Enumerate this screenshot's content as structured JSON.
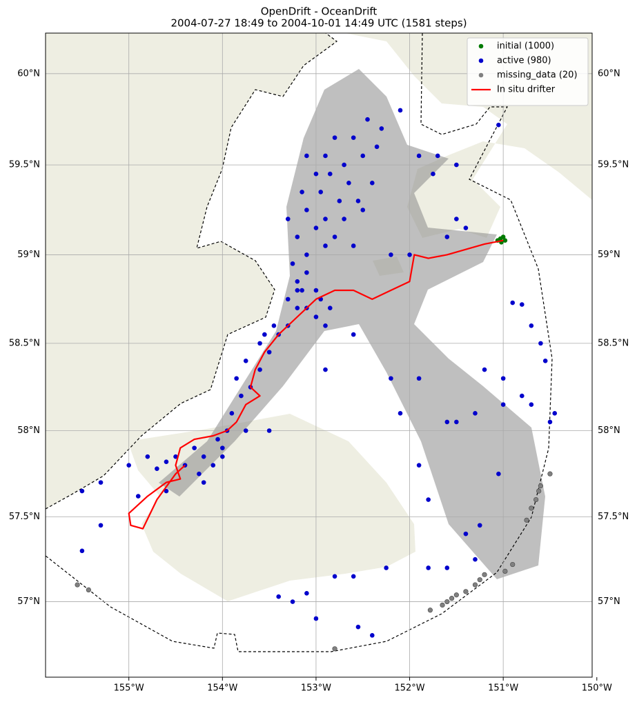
{
  "chart_data": {
    "type": "scatter",
    "title": "OpenDrift - OceanDrift",
    "subtitle": "2004-07-27 18:49 to 2004-10-01 14:49 UTC (1581 steps)",
    "projection": "mercator",
    "grid": true,
    "legend": "upper right",
    "xlim": [
      -155.89,
      -150.05
    ],
    "ylim": [
      56.55,
      60.22
    ],
    "xticks": [
      {
        "value": -155,
        "label": "155°W"
      },
      {
        "value": -154,
        "label": "154°W"
      },
      {
        "value": -153,
        "label": "153°W"
      },
      {
        "value": -152,
        "label": "152°W"
      },
      {
        "value": -151,
        "label": "151°W"
      },
      {
        "value": -150,
        "label": "150°W"
      }
    ],
    "yticks": [
      {
        "value": 57,
        "label": "57°N"
      },
      {
        "value": 57.5,
        "label": "57.5°N"
      },
      {
        "value": 58,
        "label": "58°N"
      },
      {
        "value": 58.5,
        "label": "58.5°N"
      },
      {
        "value": 59,
        "label": "59°N"
      },
      {
        "value": 59.5,
        "label": "59.5°N"
      },
      {
        "value": 60,
        "label": "60°N"
      }
    ],
    "series": [
      {
        "name": "initial (1000)",
        "color": "#007a00",
        "kind": "points",
        "x": [
          -151.03,
          -151.0,
          -151.06,
          -150.98,
          -151.02
        ],
        "y": [
          59.09,
          59.1,
          59.08,
          59.08,
          59.07
        ]
      },
      {
        "name": "active (980)",
        "color": "#0000cc",
        "kind": "points",
        "x": [
          -154.4,
          -154.5,
          -154.3,
          -154.2,
          -154.0,
          -154.1,
          -154.6,
          -154.7,
          -154.25,
          -154.05,
          -153.95,
          -154.0,
          -154.8,
          -153.9,
          -153.8,
          -153.7,
          -153.85,
          -153.6,
          -153.75,
          -153.5,
          -153.6,
          -153.4,
          -153.55,
          -153.3,
          -153.45,
          -153.2,
          -153.3,
          -153.1,
          -153.0,
          -152.9,
          -153.15,
          -153.2,
          -153.1,
          -153.0,
          -152.95,
          -152.85,
          -153.25,
          -153.1,
          -152.9,
          -153.2,
          -153.0,
          -152.8,
          -152.6,
          -153.3,
          -153.1,
          -152.9,
          -152.7,
          -152.5,
          -153.15,
          -152.95,
          -152.75,
          -152.55,
          -153.0,
          -152.85,
          -152.65,
          -152.4,
          -153.1,
          -152.9,
          -152.7,
          -152.5,
          -152.8,
          -152.6,
          -152.35,
          -152.3,
          -152.1,
          -152.45,
          -151.9,
          -151.7,
          -151.5,
          -151.75,
          -151.6,
          -151.4,
          -151.5,
          -152.2,
          -152.0,
          -155.0,
          -155.3,
          -155.5,
          -155.5,
          -155.3,
          -154.6,
          -154.9,
          -151.05,
          -150.9,
          -150.8,
          -150.7,
          -150.6,
          -150.55,
          -150.45,
          -150.7,
          -150.5,
          -150.8,
          -151.2,
          -151.0,
          -151.0,
          -151.3,
          -151.5,
          -151.6,
          -151.9,
          -151.8,
          -151.9,
          -152.2,
          -152.1,
          -152.6,
          -152.9,
          -153.2,
          -151.4,
          -151.25,
          -151.3,
          -151.05,
          -152.25,
          -151.8,
          -151.6,
          -152.6,
          -152.8,
          -153.1,
          -152.4,
          -152.55,
          -153.0,
          -153.25,
          -153.4,
          -154.2,
          -153.5,
          -153.75
        ],
        "y": [
          57.8,
          57.85,
          57.9,
          57.85,
          57.9,
          57.8,
          57.82,
          57.78,
          57.75,
          57.95,
          58.0,
          57.85,
          57.85,
          58.1,
          58.2,
          58.25,
          58.3,
          58.35,
          58.4,
          58.45,
          58.5,
          58.55,
          58.55,
          58.6,
          58.6,
          58.7,
          58.75,
          58.7,
          58.65,
          58.6,
          58.8,
          58.85,
          58.9,
          58.8,
          58.75,
          58.7,
          58.95,
          59.0,
          59.05,
          59.1,
          59.15,
          59.1,
          59.05,
          59.2,
          59.25,
          59.2,
          59.2,
          59.25,
          59.35,
          59.35,
          59.3,
          59.3,
          59.45,
          59.45,
          59.4,
          59.4,
          59.55,
          59.55,
          59.5,
          59.55,
          59.65,
          59.65,
          59.6,
          59.7,
          59.8,
          59.75,
          59.55,
          59.55,
          59.5,
          59.45,
          59.1,
          59.15,
          59.2,
          59.0,
          59.0,
          57.8,
          57.7,
          57.65,
          57.3,
          57.45,
          57.65,
          57.62,
          59.72,
          58.73,
          58.72,
          58.6,
          58.5,
          58.4,
          58.1,
          58.15,
          58.05,
          58.2,
          58.35,
          58.3,
          58.15,
          58.1,
          58.05,
          58.05,
          58.3,
          57.6,
          57.8,
          58.3,
          58.1,
          58.55,
          58.35,
          58.8,
          57.4,
          57.45,
          57.25,
          57.75,
          57.2,
          57.2,
          57.2,
          57.15,
          57.15,
          57.05,
          56.8,
          56.85,
          56.9,
          57.0,
          57.03,
          57.7,
          58.0,
          58.0
        ]
      },
      {
        "name": "missing_data (20)",
        "color": "#808080",
        "kind": "points",
        "x": [
          -155.55,
          -155.43,
          -152.8,
          -151.78,
          -151.65,
          -151.6,
          -151.55,
          -151.5,
          -151.4,
          -151.3,
          -151.25,
          -151.2,
          -150.98,
          -150.9,
          -150.75,
          -150.7,
          -150.65,
          -150.62,
          -150.6,
          -150.5
        ],
        "y": [
          57.1,
          57.07,
          56.72,
          56.95,
          56.98,
          57.0,
          57.02,
          57.04,
          57.06,
          57.1,
          57.13,
          57.16,
          57.18,
          57.22,
          57.48,
          57.55,
          57.6,
          57.65,
          57.68,
          57.75
        ]
      },
      {
        "name": "In situ drifter",
        "color": "#ff0000",
        "kind": "line",
        "x": [
          -151.0,
          -151.2,
          -151.6,
          -151.8,
          -151.95,
          -152.0,
          -152.2,
          -152.4,
          -152.6,
          -152.8,
          -153.0,
          -153.2,
          -153.4,
          -153.55,
          -153.65,
          -153.7,
          -153.6,
          -153.75,
          -153.85,
          -153.95,
          -154.1,
          -154.3,
          -154.45,
          -154.5,
          -154.45,
          -154.6,
          -154.8,
          -155.0,
          -154.98,
          -154.85,
          -154.7,
          -154.5,
          -154.4
        ],
        "y": [
          59.08,
          59.06,
          59.0,
          58.98,
          59.0,
          58.85,
          58.8,
          58.75,
          58.8,
          58.8,
          58.75,
          58.65,
          58.55,
          58.45,
          58.35,
          58.25,
          58.2,
          58.15,
          58.05,
          58.0,
          57.97,
          57.95,
          57.9,
          57.8,
          57.72,
          57.7,
          57.62,
          57.52,
          57.45,
          57.43,
          57.6,
          57.75,
          57.8
        ]
      }
    ]
  }
}
